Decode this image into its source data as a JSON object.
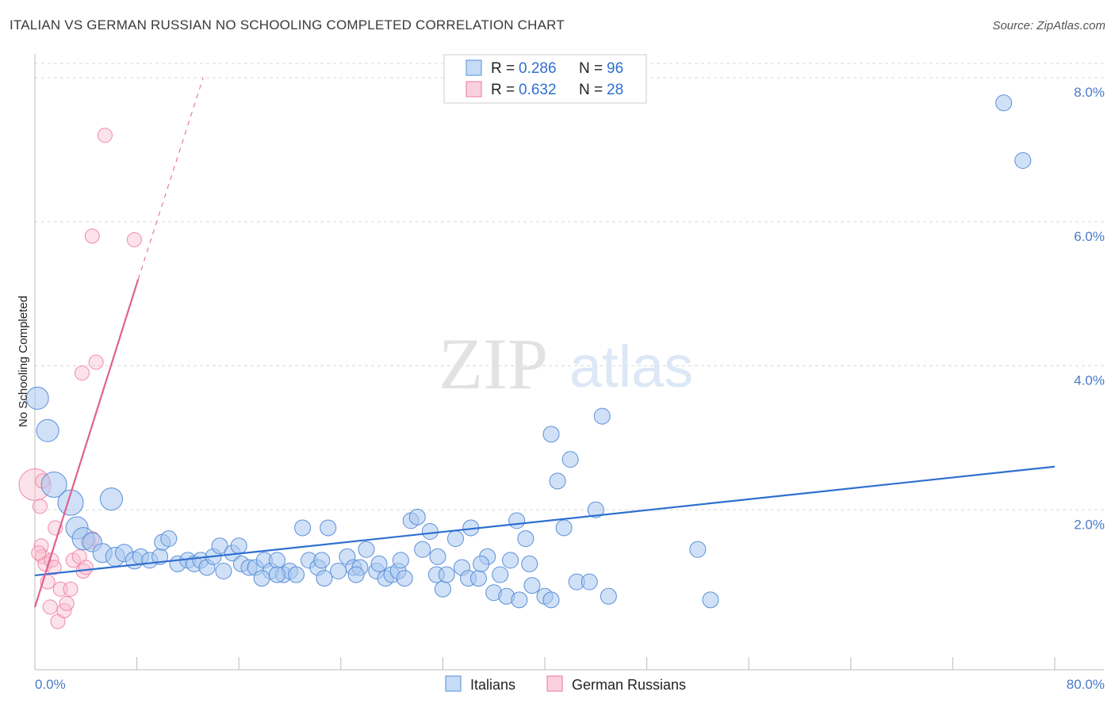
{
  "title": "ITALIAN VS GERMAN RUSSIAN NO SCHOOLING COMPLETED CORRELATION CHART",
  "source": "Source: ZipAtlas.com",
  "watermark": {
    "zip": "ZIP",
    "atlas": "atlas"
  },
  "colors": {
    "blue": "#6a9fe0",
    "blue_line": "#2f6fd0",
    "pink": "#f08aaa",
    "pink_line": "#e06090",
    "tick": "#4a7bc8",
    "grid": "#d8d8d8"
  },
  "legend": {
    "rows": [
      {
        "r_label": "R = ",
        "r": "0.286",
        "n_label": "N = ",
        "n": "96"
      },
      {
        "r_label": "R = ",
        "r": "0.632",
        "n_label": "N = ",
        "n": "28"
      }
    ]
  },
  "chart_data": {
    "type": "scatter",
    "title": "ITALIAN VS GERMAN RUSSIAN NO SCHOOLING COMPLETED CORRELATION CHART",
    "ylabel": "No Schooling Completed",
    "xlabel": "",
    "x_tick_labels": [
      "0.0%",
      "80.0%"
    ],
    "y_tick_labels": [
      "2.0%",
      "4.0%",
      "6.0%",
      "8.0%"
    ],
    "xlim": [
      0,
      80
    ],
    "ylim": [
      0,
      8
    ],
    "grid": true,
    "legend_position": "top-center",
    "series": [
      {
        "name": "Italians",
        "color": "#6a9fe0",
        "trend": {
          "x": [
            0,
            80
          ],
          "y": [
            1.09,
            2.6
          ]
        },
        "points": [
          [
            0.2,
            3.55,
            14
          ],
          [
            1.0,
            3.1,
            14
          ],
          [
            1.5,
            2.35,
            16
          ],
          [
            2.8,
            2.1,
            16
          ],
          [
            3.3,
            1.75,
            14
          ],
          [
            3.8,
            1.6,
            14
          ],
          [
            4.5,
            1.55,
            12
          ],
          [
            5.3,
            1.4,
            12
          ],
          [
            6.0,
            2.15,
            14
          ],
          [
            6.3,
            1.35,
            12
          ],
          [
            7.0,
            1.4,
            11
          ],
          [
            7.8,
            1.3,
            11
          ],
          [
            8.3,
            1.35,
            10
          ],
          [
            9.0,
            1.3,
            10
          ],
          [
            9.8,
            1.35,
            10
          ],
          [
            10.0,
            1.55,
            10
          ],
          [
            10.5,
            1.6,
            10
          ],
          [
            11.2,
            1.25,
            10
          ],
          [
            12.0,
            1.3,
            10
          ],
          [
            12.5,
            1.25,
            10
          ],
          [
            13.0,
            1.3,
            10
          ],
          [
            13.5,
            1.2,
            10
          ],
          [
            14.0,
            1.35,
            10
          ],
          [
            14.5,
            1.5,
            10
          ],
          [
            14.8,
            1.15,
            10
          ],
          [
            15.5,
            1.4,
            10
          ],
          [
            16.0,
            1.5,
            10
          ],
          [
            16.2,
            1.25,
            10
          ],
          [
            16.8,
            1.2,
            10
          ],
          [
            17.3,
            1.2,
            10
          ],
          [
            18.0,
            1.3,
            10
          ],
          [
            18.5,
            1.15,
            10
          ],
          [
            19.0,
            1.3,
            10
          ],
          [
            19.5,
            1.1,
            10
          ],
          [
            20.0,
            1.15,
            10
          ],
          [
            20.5,
            1.1,
            10
          ],
          [
            21.0,
            1.75,
            10
          ],
          [
            21.5,
            1.3,
            10
          ],
          [
            22.2,
            1.2,
            10
          ],
          [
            22.5,
            1.3,
            10
          ],
          [
            23.0,
            1.75,
            10
          ],
          [
            23.8,
            1.15,
            10
          ],
          [
            24.5,
            1.35,
            10
          ],
          [
            25.0,
            1.2,
            10
          ],
          [
            25.5,
            1.2,
            10
          ],
          [
            26.0,
            1.45,
            10
          ],
          [
            26.8,
            1.15,
            10
          ],
          [
            27.5,
            1.05,
            10
          ],
          [
            28.0,
            1.1,
            10
          ],
          [
            28.5,
            1.15,
            10
          ],
          [
            29.0,
            1.05,
            10
          ],
          [
            29.5,
            1.85,
            10
          ],
          [
            30.0,
            1.9,
            10
          ],
          [
            31.0,
            1.7,
            10
          ],
          [
            31.5,
            1.1,
            10
          ],
          [
            32.0,
            0.9,
            10
          ],
          [
            32.3,
            1.1,
            10
          ],
          [
            33.0,
            1.6,
            10
          ],
          [
            33.5,
            1.2,
            10
          ],
          [
            34.0,
            1.05,
            10
          ],
          [
            34.8,
            1.05,
            10
          ],
          [
            35.5,
            1.35,
            10
          ],
          [
            36.0,
            0.85,
            10
          ],
          [
            37.0,
            0.8,
            10
          ],
          [
            37.3,
            1.3,
            10
          ],
          [
            38.0,
            0.75,
            10
          ],
          [
            38.5,
            1.6,
            10
          ],
          [
            39.0,
            0.95,
            10
          ],
          [
            40.0,
            0.8,
            10
          ],
          [
            40.5,
            0.75,
            10
          ],
          [
            40.5,
            3.05,
            10
          ],
          [
            41.0,
            2.4,
            10
          ],
          [
            41.5,
            1.75,
            10
          ],
          [
            42.0,
            2.7,
            10
          ],
          [
            42.5,
            1.0,
            10
          ],
          [
            43.5,
            1.0,
            10
          ],
          [
            44.0,
            2.0,
            10
          ],
          [
            44.5,
            3.3,
            10
          ],
          [
            45.0,
            0.8,
            10
          ],
          [
            52.0,
            1.45,
            10
          ],
          [
            53.0,
            0.75,
            10
          ],
          [
            76.0,
            7.65,
            10
          ],
          [
            77.5,
            6.85,
            10
          ],
          [
            17.8,
            1.05,
            10
          ],
          [
            19.0,
            1.1,
            10
          ],
          [
            22.7,
            1.05,
            10
          ],
          [
            25.2,
            1.1,
            10
          ],
          [
            27.0,
            1.25,
            10
          ],
          [
            28.7,
            1.3,
            10
          ],
          [
            30.4,
            1.45,
            10
          ],
          [
            31.6,
            1.35,
            10
          ],
          [
            34.2,
            1.75,
            10
          ],
          [
            35.0,
            1.25,
            10
          ],
          [
            36.5,
            1.1,
            10
          ],
          [
            37.8,
            1.85,
            10
          ],
          [
            38.8,
            1.25,
            10
          ]
        ]
      },
      {
        "name": "German Russians",
        "color": "#f08aaa",
        "trend": {
          "x": [
            0,
            8.1
          ],
          "y": [
            0.65,
            5.2
          ]
        },
        "trend_dashed": {
          "x": [
            8.1,
            13.2
          ],
          "y": [
            5.2,
            8.0
          ]
        },
        "points": [
          [
            0.0,
            2.35,
            20
          ],
          [
            0.4,
            2.05,
            9
          ],
          [
            0.6,
            2.4,
            9
          ],
          [
            0.5,
            1.5,
            9
          ],
          [
            0.6,
            1.35,
            9
          ],
          [
            0.8,
            1.25,
            9
          ],
          [
            1.0,
            1.0,
            9
          ],
          [
            1.2,
            0.65,
            9
          ],
          [
            1.3,
            1.3,
            9
          ],
          [
            1.5,
            1.2,
            9
          ],
          [
            1.6,
            1.75,
            9
          ],
          [
            1.8,
            0.45,
            9
          ],
          [
            2.0,
            0.9,
            9
          ],
          [
            2.3,
            0.6,
            9
          ],
          [
            2.5,
            0.7,
            9
          ],
          [
            2.8,
            0.9,
            9
          ],
          [
            3.0,
            1.3,
            9
          ],
          [
            3.5,
            1.35,
            9
          ],
          [
            3.8,
            1.15,
            9
          ],
          [
            4.0,
            1.2,
            9
          ],
          [
            4.2,
            1.55,
            9
          ],
          [
            4.5,
            1.6,
            9
          ],
          [
            3.7,
            3.9,
            9
          ],
          [
            4.8,
            4.05,
            9
          ],
          [
            4.5,
            5.8,
            9
          ],
          [
            5.5,
            7.2,
            9
          ],
          [
            7.8,
            5.75,
            9
          ],
          [
            0.3,
            1.4,
            9
          ]
        ]
      }
    ]
  },
  "bottom_legend": [
    {
      "label": "Italians"
    },
    {
      "label": "German Russians"
    }
  ]
}
